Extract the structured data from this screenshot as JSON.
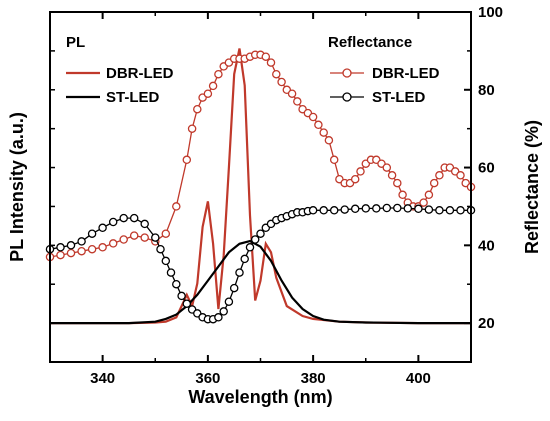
{
  "chart_data": {
    "type": "line",
    "xlabel": "Wavelength (nm)",
    "ylabel_left": "PL Intensity (a.u.)",
    "ylabel_right": "Reflectance (%)",
    "xlim": [
      330,
      410
    ],
    "ylim_right": [
      10,
      100
    ],
    "xticks": [
      340,
      360,
      380,
      400
    ],
    "yticks_right": [
      20,
      40,
      60,
      80,
      100
    ],
    "grid": false,
    "legend_pl": {
      "title": "PL",
      "entries": [
        "DBR-LED",
        "ST-LED"
      ]
    },
    "legend_reflectance": {
      "title": "Reflectance",
      "entries": [
        "DBR-LED",
        "ST-LED"
      ]
    },
    "colors": {
      "dbr": "#c0392b",
      "st": "#000000"
    },
    "series": [
      {
        "name": "DBR-LED",
        "group": "PL",
        "axis": "left",
        "marker": "none",
        "x": [
          330,
          340,
          345,
          350,
          352,
          354,
          355,
          356,
          357,
          358,
          359,
          360,
          361,
          362,
          363,
          364,
          365,
          366,
          367,
          368,
          369,
          370,
          371,
          372,
          373,
          375,
          378,
          380,
          385,
          390,
          400,
          410
        ],
        "y": [
          0,
          0,
          0,
          0.2,
          0.5,
          2.0,
          6.0,
          10.0,
          6.0,
          14.0,
          34.0,
          43.0,
          28.0,
          5.0,
          24.0,
          55.0,
          88.0,
          97.0,
          84.0,
          38.0,
          8.0,
          15.0,
          28.0,
          25.0,
          16.0,
          6.0,
          2.5,
          1.5,
          0.5,
          0.2,
          0,
          0
        ]
      },
      {
        "name": "ST-LED",
        "group": "PL",
        "axis": "left",
        "marker": "none",
        "x": [
          330,
          340,
          345,
          350,
          352,
          354,
          356,
          358,
          360,
          362,
          364,
          366,
          368,
          370,
          372,
          374,
          376,
          378,
          380,
          382,
          385,
          390,
          400,
          410
        ],
        "y": [
          0,
          0,
          0,
          0.5,
          1.5,
          3.0,
          6.0,
          10.0,
          15.0,
          20.0,
          25.0,
          28.0,
          29.0,
          27.0,
          22.0,
          15.0,
          9.0,
          5.0,
          2.5,
          1.2,
          0.5,
          0.2,
          0,
          0
        ]
      },
      {
        "name": "DBR-LED",
        "group": "Reflectance",
        "axis": "right",
        "marker": "open-circle",
        "x": [
          330,
          332,
          334,
          336,
          338,
          340,
          342,
          344,
          346,
          348,
          350,
          352,
          354,
          356,
          357,
          358,
          359,
          360,
          361,
          362,
          363,
          364,
          365,
          366,
          367,
          368,
          369,
          370,
          371,
          372,
          373,
          374,
          375,
          376,
          377,
          378,
          379,
          380,
          381,
          382,
          383,
          384,
          385,
          386,
          387,
          388,
          389,
          390,
          391,
          392,
          393,
          394,
          395,
          396,
          397,
          398,
          399,
          400,
          401,
          402,
          403,
          404,
          405,
          406,
          407,
          408,
          409,
          410
        ],
        "y": [
          37,
          37.5,
          38,
          38.5,
          39,
          39.5,
          40.5,
          41.5,
          42.5,
          42,
          41,
          43,
          50,
          62,
          70,
          75,
          78,
          79,
          81,
          84,
          86,
          87,
          88,
          88,
          88,
          88.5,
          89,
          89,
          88.5,
          87,
          84,
          82,
          80,
          79,
          77,
          75,
          74,
          73,
          71,
          69,
          67,
          62,
          57,
          56,
          56,
          57,
          59,
          61,
          62,
          62,
          61,
          60,
          58,
          56,
          53,
          51,
          50,
          50,
          51,
          53,
          56,
          58,
          60,
          60,
          59,
          58,
          56,
          55
        ]
      },
      {
        "name": "ST-LED",
        "group": "Reflectance",
        "axis": "right",
        "marker": "open-circle",
        "x": [
          330,
          332,
          334,
          336,
          338,
          340,
          342,
          344,
          346,
          348,
          350,
          351,
          352,
          353,
          354,
          355,
          356,
          357,
          358,
          359,
          360,
          361,
          362,
          363,
          364,
          365,
          366,
          367,
          368,
          369,
          370,
          371,
          372,
          373,
          374,
          375,
          376,
          377,
          378,
          379,
          380,
          382,
          384,
          386,
          388,
          390,
          392,
          394,
          396,
          398,
          400,
          402,
          404,
          406,
          408,
          410
        ],
        "y": [
          39,
          39.5,
          40,
          41,
          43,
          44.5,
          46,
          47,
          47,
          45.5,
          42,
          39,
          36,
          33,
          30,
          27,
          25,
          23.5,
          22.5,
          21.5,
          21,
          21,
          21.5,
          23,
          25.5,
          29,
          33,
          36.5,
          39.5,
          41.5,
          43,
          44.5,
          45.5,
          46.5,
          47,
          47.5,
          48,
          48.5,
          48.5,
          48.8,
          49,
          49,
          49,
          49.2,
          49.4,
          49.5,
          49.5,
          49.6,
          49.6,
          49.5,
          49.4,
          49.2,
          49,
          49,
          49,
          49
        ]
      }
    ]
  }
}
